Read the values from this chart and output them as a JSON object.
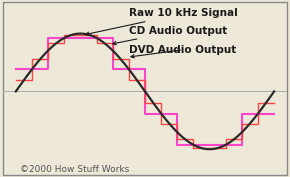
{
  "copyright_text": "©2000 How Stuff Works",
  "copyright_fontsize": 6.5,
  "background_color": "#ede8d8",
  "sine_color": "#2a2a2a",
  "cd_color": "#ff44cc",
  "dvd_color": "#ff4444",
  "annotation_color": "#1a1a1a",
  "annotation_fontsize": 7.5,
  "sine_linewidth": 1.6,
  "cd_linewidth": 1.5,
  "dvd_linewidth": 1.0,
  "xlim": [
    -0.05,
    1.05
  ],
  "ylim": [
    -1.45,
    1.55
  ],
  "cd_steps": 4,
  "dvd_steps": 8,
  "border_color": "#888888",
  "zeroline_color": "#aaaaaa",
  "label_raw": "Raw 10 kHz Signal",
  "label_cd": "CD Audio Output",
  "label_dvd": "DVD Audio Output"
}
